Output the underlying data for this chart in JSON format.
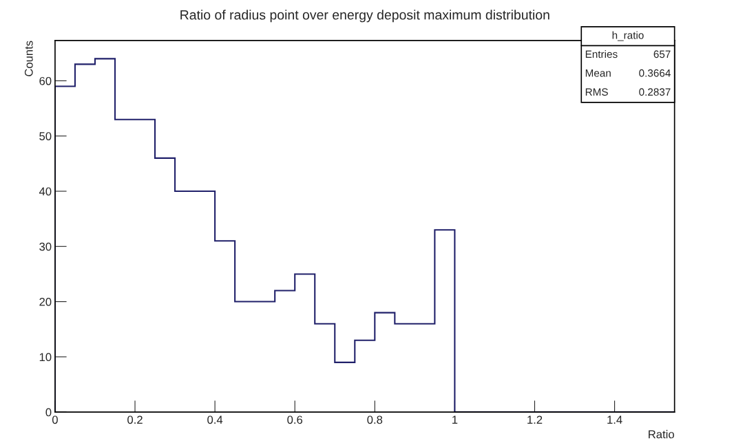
{
  "chart_data": {
    "type": "histogram",
    "title": "Ratio of radius point over energy deposit maximum distribution",
    "xlabel": "Ratio",
    "ylabel": "Counts",
    "bins": [
      0,
      0.05,
      0.1,
      0.15,
      0.2,
      0.25,
      0.3,
      0.35,
      0.4,
      0.45,
      0.5,
      0.55,
      0.6,
      0.65,
      0.7,
      0.75,
      0.8,
      0.85,
      0.9,
      0.95,
      1.0,
      1.05,
      1.1,
      1.15,
      1.2,
      1.25,
      1.3,
      1.35,
      1.4,
      1.45,
      1.5,
      1.55
    ],
    "values": [
      59,
      63,
      64,
      53,
      53,
      46,
      40,
      40,
      31,
      20,
      20,
      22,
      25,
      16,
      9,
      13,
      18,
      16,
      16,
      33,
      0,
      0,
      0,
      0,
      0,
      0,
      0,
      0,
      0,
      0,
      0
    ],
    "color": "#20206a",
    "xlim": [
      0,
      1.55
    ],
    "ylim": [
      0,
      67.3
    ],
    "xticks": [
      0,
      0.2,
      0.4,
      0.6,
      0.8,
      1,
      1.2,
      1.4
    ],
    "yticks": [
      0,
      10,
      20,
      30,
      40,
      50,
      60
    ],
    "grid": false,
    "annotations": [
      "h_ratio",
      "Entries",
      "657",
      "Mean",
      "0.3664",
      "RMS",
      "0.2837"
    ]
  }
}
